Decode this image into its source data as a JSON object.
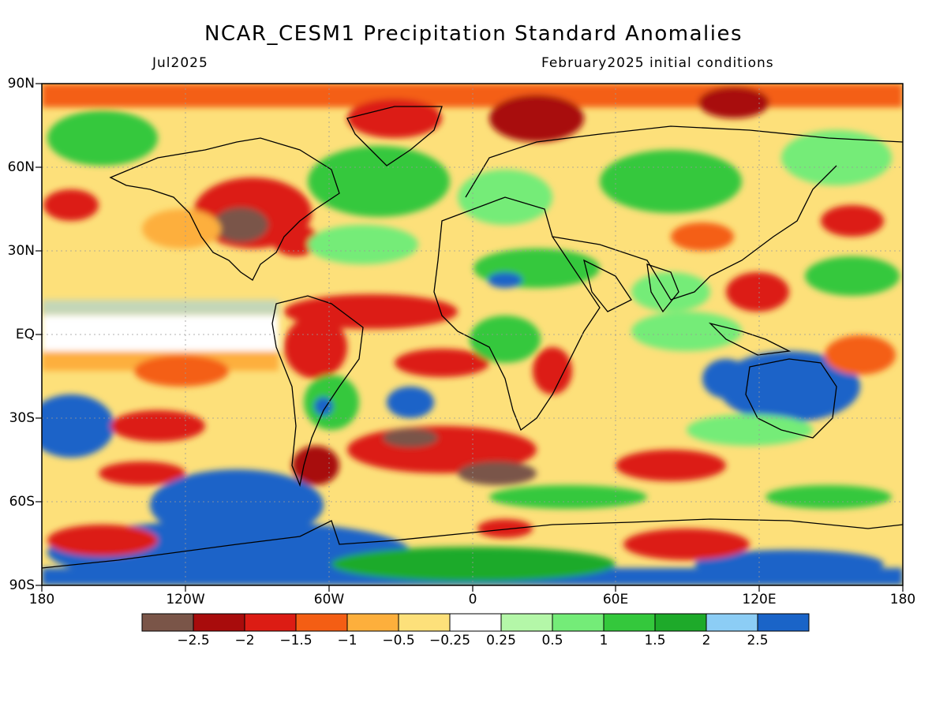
{
  "title": "NCAR_CESM1 Precipitation Standard Anomalies",
  "subtitle_left": "Jul2025",
  "subtitle_right": "February2025 initial conditions",
  "lat_labels": [
    "90N",
    "60N",
    "30N",
    "EQ",
    "30S",
    "60S",
    "90S"
  ],
  "lon_labels": [
    "180",
    "120W",
    "60W",
    "0",
    "60E",
    "120E",
    "180"
  ],
  "colorbar": {
    "labels": [
      "−2.5",
      "−2",
      "−1.5",
      "−1",
      "−0.5",
      "−0.25",
      "0.25",
      "0.5",
      "1",
      "1.5",
      "2",
      "2.5"
    ],
    "colors": [
      "#7a5548",
      "#a80c0c",
      "#dc1c14",
      "#f45e14",
      "#fdaf3c",
      "#fde07a",
      "#ffffff",
      "#b4f7a8",
      "#74ec78",
      "#34c83c",
      "#1eaa2a",
      "#8ccdf5",
      "#1a64c8"
    ]
  }
}
